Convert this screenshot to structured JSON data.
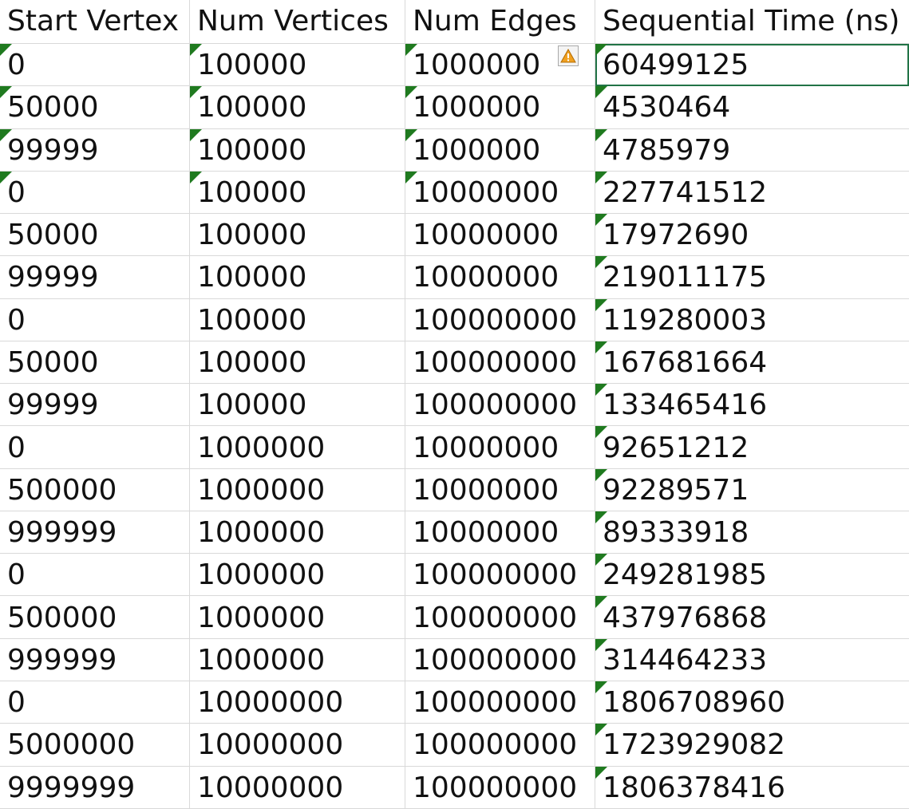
{
  "sheet": {
    "headers": [
      "Start Vertex",
      "Num Vertices",
      "Num Edges",
      "Sequential Time (ns)"
    ],
    "rows": [
      [
        "0",
        "100000",
        "1000000",
        "60499125"
      ],
      [
        "50000",
        "100000",
        "1000000",
        "4530464"
      ],
      [
        "99999",
        "100000",
        "1000000",
        "4785979"
      ],
      [
        "0",
        "100000",
        "10000000",
        "227741512"
      ],
      [
        "50000",
        "100000",
        "10000000",
        "17972690"
      ],
      [
        "99999",
        "100000",
        "10000000",
        "219011175"
      ],
      [
        "0",
        "100000",
        "100000000",
        "119280003"
      ],
      [
        "50000",
        "100000",
        "100000000",
        "167681664"
      ],
      [
        "99999",
        "100000",
        "100000000",
        "133465416"
      ],
      [
        "0",
        "1000000",
        "10000000",
        "92651212"
      ],
      [
        "500000",
        "1000000",
        "10000000",
        "92289571"
      ],
      [
        "999999",
        "1000000",
        "10000000",
        "89333918"
      ],
      [
        "0",
        "1000000",
        "100000000",
        "249281985"
      ],
      [
        "500000",
        "1000000",
        "100000000",
        "437976868"
      ],
      [
        "999999",
        "1000000",
        "100000000",
        "314464233"
      ],
      [
        "0",
        "10000000",
        "100000000",
        "1806708960"
      ],
      [
        "5000000",
        "10000000",
        "100000000",
        "1723929082"
      ],
      [
        "9999999",
        "10000000",
        "100000000",
        "1806378416"
      ]
    ],
    "text_flag_columns_first_rows": 4,
    "selected_cell": {
      "row": 0,
      "col": 3
    },
    "warning_icon": {
      "name": "warning-icon",
      "color": "#f0a020"
    },
    "colors": {
      "gridline": "#d9d9d9",
      "text_flag": "#1f7a1f",
      "selection": "#217346"
    }
  }
}
